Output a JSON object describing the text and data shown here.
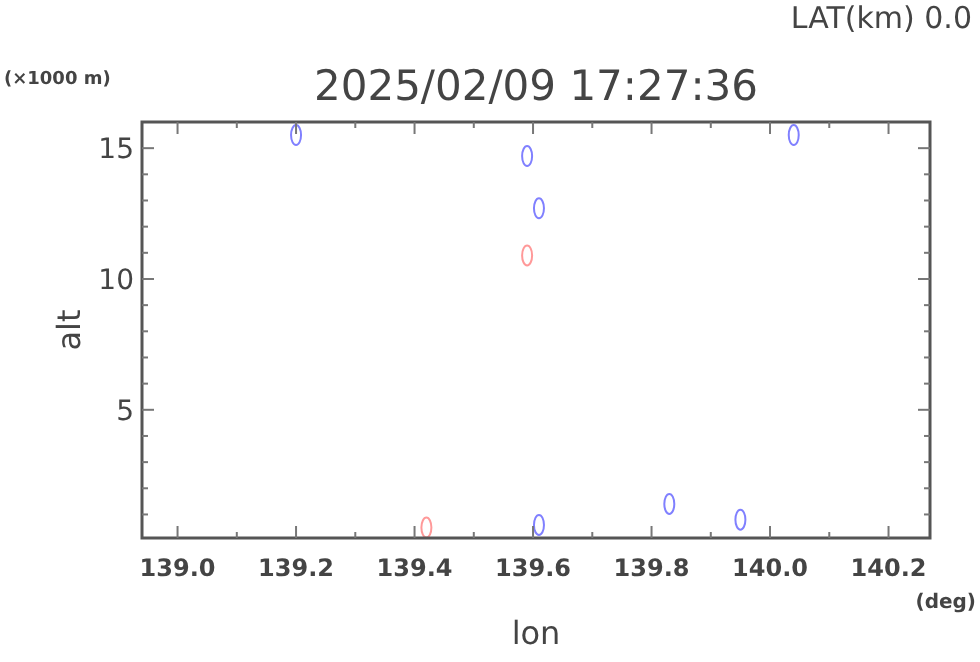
{
  "chart_data": {
    "type": "scatter",
    "title": "2025/02/09 17:27:36",
    "xlabel": "lon",
    "ylabel": "alt",
    "annotations": [
      "LAT(km) 0.0",
      "(×1000 m)",
      "(deg)"
    ],
    "marker": "circle",
    "grid": false,
    "series": [
      {
        "color": "#8080ff",
        "x": [
          139.2,
          139.59,
          139.61,
          140.04,
          139.61,
          139.83,
          139.95
        ],
        "values": [
          15.5,
          14.7,
          12.7,
          15.5,
          0.6,
          1.4,
          0.8
        ]
      },
      {
        "color": "#ff9999",
        "x": [
          139.59,
          139.42
        ],
        "values": [
          10.9,
          0.5
        ]
      }
    ],
    "xlim": [
      138.94,
      140.27
    ],
    "xticks": [
      {
        "value": 139,
        "label": "139.0"
      },
      {
        "value": 139.1,
        "label": null
      },
      {
        "value": 139.2,
        "label": "139.2"
      },
      {
        "value": 139.3,
        "label": null
      },
      {
        "value": 139.4,
        "label": "139.4"
      },
      {
        "value": 139.5,
        "label": null
      },
      {
        "value": 139.6,
        "label": "139.6"
      },
      {
        "value": 139.7,
        "label": null
      },
      {
        "value": 139.8,
        "label": "139.8"
      },
      {
        "value": 139.9,
        "label": null
      },
      {
        "value": 140,
        "label": "140.0"
      },
      {
        "value": 140.1,
        "label": null
      },
      {
        "value": 140.2,
        "label": "140.2"
      }
    ],
    "ylim": [
      0.1,
      16
    ],
    "yticks": [
      {
        "value": 1,
        "label": null
      },
      {
        "value": 2,
        "label": null
      },
      {
        "value": 3,
        "label": null
      },
      {
        "value": 4,
        "label": null
      },
      5,
      {
        "value": 6,
        "label": null
      },
      {
        "value": 7,
        "label": null
      },
      {
        "value": 8,
        "label": null
      },
      {
        "value": 9,
        "label": null
      },
      10,
      {
        "value": 11,
        "label": null
      },
      {
        "value": 12,
        "label": null
      },
      {
        "value": 13,
        "label": null
      },
      {
        "value": 14,
        "label": null
      },
      15
    ]
  }
}
